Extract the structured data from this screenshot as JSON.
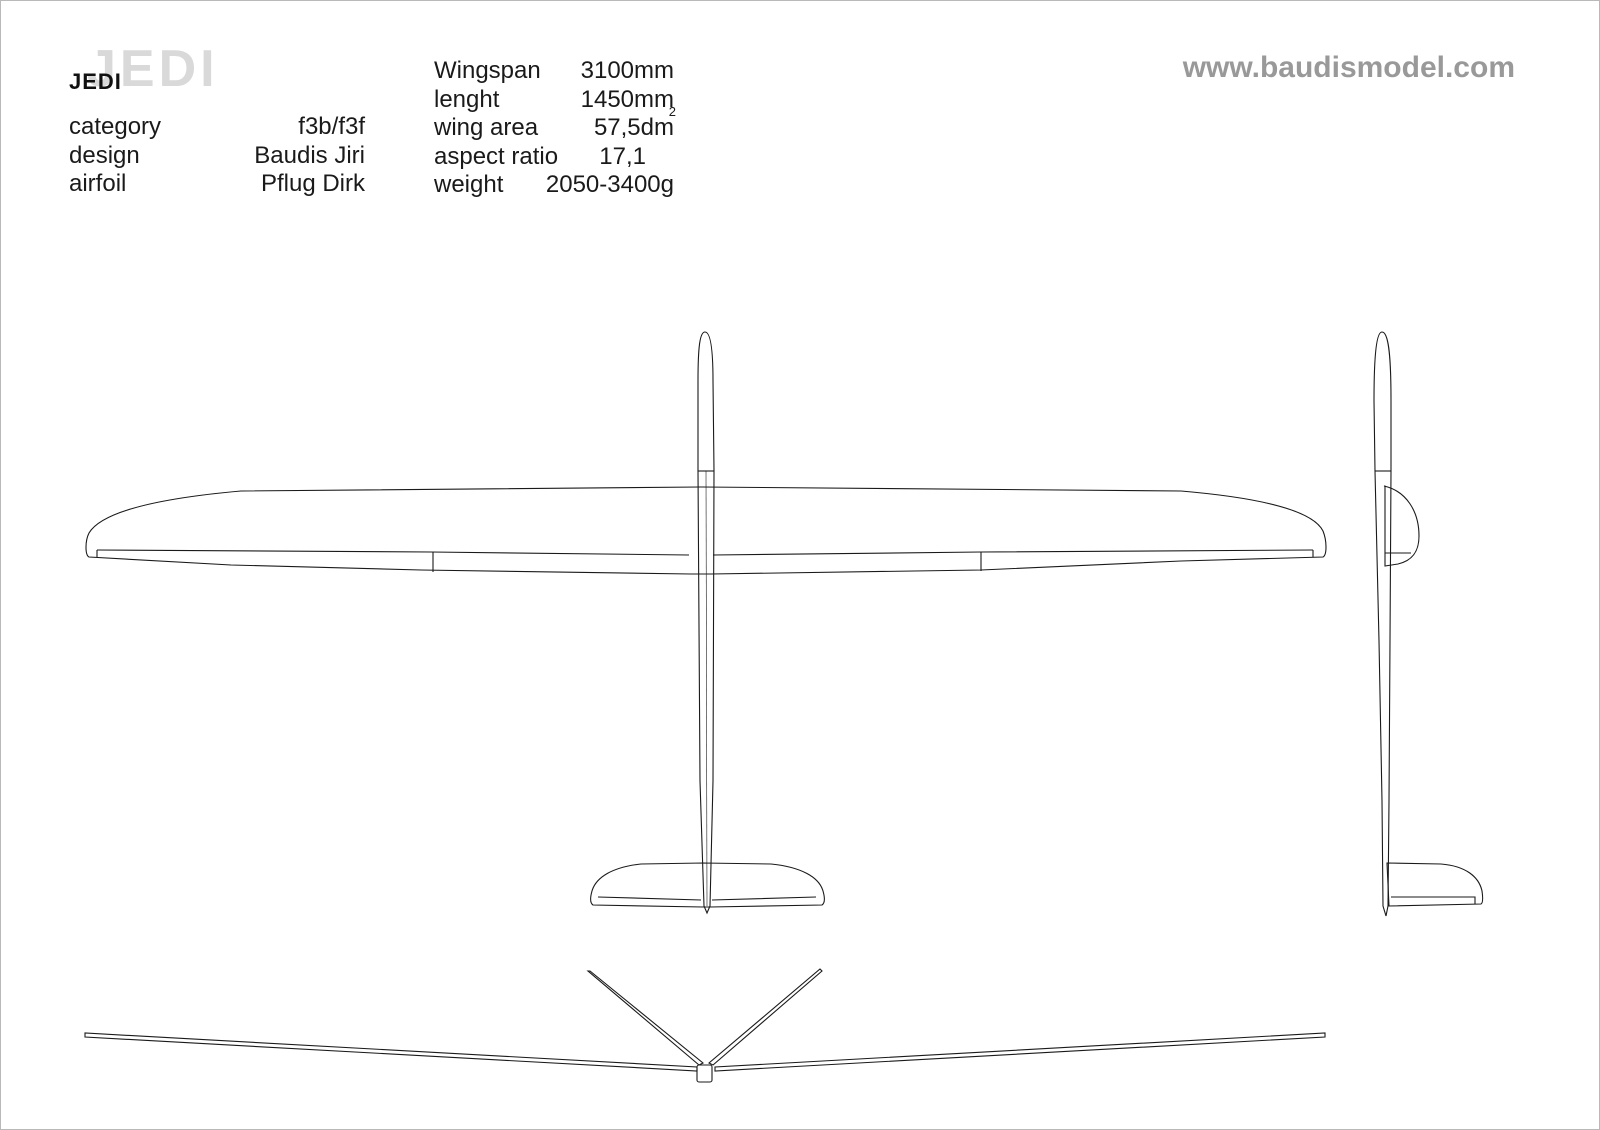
{
  "header": {
    "model_name": "JEDI",
    "model_name_watermark": "JEDI",
    "website": "www.baudismodel.com"
  },
  "specs_left": [
    {
      "label": "category",
      "value": "f3b/f3f"
    },
    {
      "label": "design",
      "value": "Baudis Jiri"
    },
    {
      "label": "airfoil",
      "value": "Pflug Dirk"
    }
  ],
  "specs_right": [
    {
      "label": "Wingspan",
      "value": "3100mm"
    },
    {
      "label": "lenght",
      "value": "1450mm"
    },
    {
      "label": "wing area",
      "value": "57,5dm",
      "superscript": "2"
    },
    {
      "label": "aspect ratio",
      "value": "17,1"
    },
    {
      "label": "weight",
      "value": "2050-3400g"
    }
  ],
  "colors": {
    "line": "#1a1a1a",
    "watermark": "#d9d9d9",
    "website": "#999999",
    "border": "#b9b9b9"
  }
}
